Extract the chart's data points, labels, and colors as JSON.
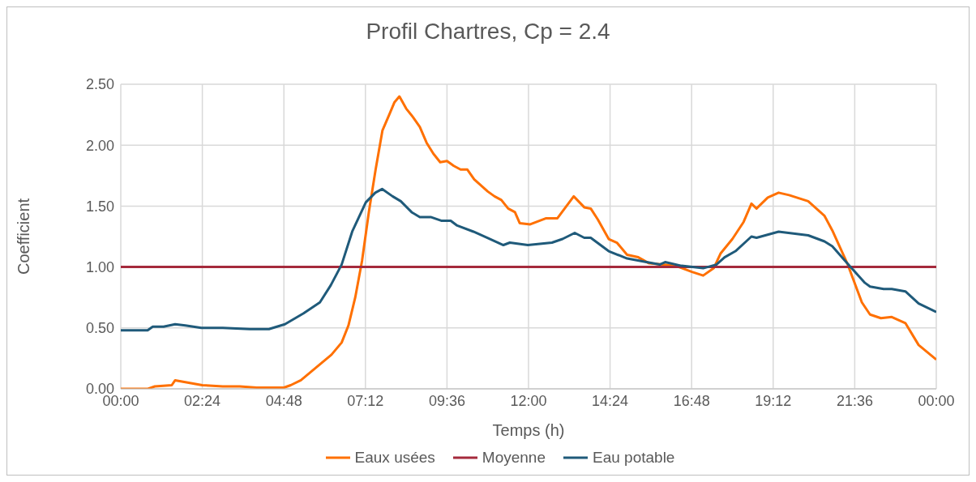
{
  "chart_data": {
    "type": "line",
    "title": "Profil Chartres, Cp = 2.4",
    "xlabel": "Temps (h)",
    "ylabel": "Coefficient",
    "xlim": [
      0,
      24
    ],
    "xticks": [
      {
        "value": 0,
        "label": "00:00"
      },
      {
        "value": 2.4,
        "label": "02:24"
      },
      {
        "value": 4.8,
        "label": "04:48"
      },
      {
        "value": 7.2,
        "label": "07:12"
      },
      {
        "value": 9.6,
        "label": "09:36"
      },
      {
        "value": 12,
        "label": "12:00"
      },
      {
        "value": 14.4,
        "label": "14:24"
      },
      {
        "value": 16.8,
        "label": "16:48"
      },
      {
        "value": 19.2,
        "label": "19:12"
      },
      {
        "value": 21.6,
        "label": "21:36"
      },
      {
        "value": 24,
        "label": "00:00"
      }
    ],
    "ylim": [
      0,
      2.5
    ],
    "yticks": [
      {
        "value": 0,
        "label": "0.00"
      },
      {
        "value": 0.5,
        "label": "0.50"
      },
      {
        "value": 1,
        "label": "1.00"
      },
      {
        "value": 1.5,
        "label": "1.50"
      },
      {
        "value": 2,
        "label": "2.00"
      },
      {
        "value": 2.5,
        "label": "2.50"
      }
    ],
    "grid": true,
    "legend": "bottom",
    "marker": "none",
    "line_style": "solid",
    "series": [
      {
        "name": "Eaux usées",
        "color": "#ff7000",
        "x": [
          0,
          0.8,
          1.0,
          1.5,
          1.6,
          2.0,
          2.4,
          3.0,
          3.5,
          4.0,
          4.5,
          4.8,
          5.0,
          5.3,
          5.6,
          5.9,
          6.2,
          6.5,
          6.7,
          6.9,
          7.1,
          7.3,
          7.5,
          7.7,
          7.9,
          8.05,
          8.2,
          8.4,
          8.6,
          8.8,
          9.0,
          9.2,
          9.4,
          9.6,
          9.8,
          10.0,
          10.2,
          10.4,
          10.6,
          10.8,
          11.0,
          11.2,
          11.4,
          11.6,
          11.74,
          12.05,
          12.52,
          12.85,
          13.33,
          13.64,
          13.83,
          14.04,
          14.36,
          14.6,
          14.9,
          15.23,
          15.55,
          15.94,
          16.33,
          16.81,
          17.14,
          17.45,
          17.65,
          18.0,
          18.33,
          18.56,
          18.71,
          19.04,
          19.36,
          19.67,
          20.23,
          20.71,
          20.94,
          21.38,
          21.81,
          22.05,
          22.37,
          22.69,
          23.09,
          23.48,
          24
        ],
        "values": [
          0,
          0,
          0.02,
          0.03,
          0.07,
          0.05,
          0.03,
          0.02,
          0.02,
          0.01,
          0.01,
          0.01,
          0.03,
          0.07,
          0.14,
          0.21,
          0.28,
          0.38,
          0.52,
          0.75,
          1.05,
          1.45,
          1.8,
          2.12,
          2.25,
          2.35,
          2.4,
          2.3,
          2.23,
          2.15,
          2.02,
          1.93,
          1.86,
          1.87,
          1.83,
          1.8,
          1.8,
          1.72,
          1.67,
          1.62,
          1.58,
          1.55,
          1.48,
          1.45,
          1.36,
          1.35,
          1.4,
          1.4,
          1.58,
          1.49,
          1.48,
          1.39,
          1.23,
          1.2,
          1.1,
          1.08,
          1.03,
          1.02,
          1.01,
          0.96,
          0.93,
          0.99,
          1.11,
          1.23,
          1.37,
          1.52,
          1.48,
          1.57,
          1.61,
          1.59,
          1.54,
          1.42,
          1.3,
          1.03,
          0.71,
          0.61,
          0.58,
          0.59,
          0.54,
          0.36,
          0.24
        ]
      },
      {
        "name": "Moyenne",
        "color": "#a52a3c",
        "x": [
          0,
          24
        ],
        "values": [
          1,
          1
        ]
      },
      {
        "name": "Eau potable",
        "color": "#1f5a7a",
        "x": [
          0,
          0.79,
          0.94,
          1.26,
          1.6,
          1.9,
          2.37,
          3.0,
          3.8,
          4.36,
          4.83,
          5.38,
          5.86,
          6.18,
          6.5,
          6.81,
          7.21,
          7.49,
          7.69,
          8.0,
          8.24,
          8.56,
          8.8,
          9.12,
          9.43,
          9.71,
          9.9,
          10.38,
          10.79,
          11.26,
          11.45,
          11.98,
          12.69,
          13.0,
          13.36,
          13.64,
          13.83,
          14.36,
          14.9,
          15.47,
          15.86,
          16.02,
          16.5,
          17.14,
          17.53,
          17.77,
          18.09,
          18.56,
          18.71,
          19.36,
          20.23,
          20.71,
          20.94,
          21.38,
          21.9,
          22.05,
          22.45,
          22.69,
          23.09,
          23.48,
          24
        ],
        "values": [
          0.48,
          0.48,
          0.51,
          0.51,
          0.53,
          0.52,
          0.5,
          0.5,
          0.49,
          0.49,
          0.53,
          0.62,
          0.71,
          0.85,
          1.02,
          1.29,
          1.53,
          1.61,
          1.64,
          1.58,
          1.54,
          1.45,
          1.41,
          1.41,
          1.38,
          1.38,
          1.34,
          1.29,
          1.24,
          1.18,
          1.2,
          1.18,
          1.2,
          1.23,
          1.28,
          1.24,
          1.24,
          1.13,
          1.07,
          1.04,
          1.02,
          1.04,
          1.01,
          0.99,
          1.02,
          1.08,
          1.13,
          1.25,
          1.24,
          1.29,
          1.26,
          1.21,
          1.17,
          1.03,
          0.87,
          0.84,
          0.82,
          0.82,
          0.8,
          0.7,
          0.63
        ]
      }
    ]
  }
}
